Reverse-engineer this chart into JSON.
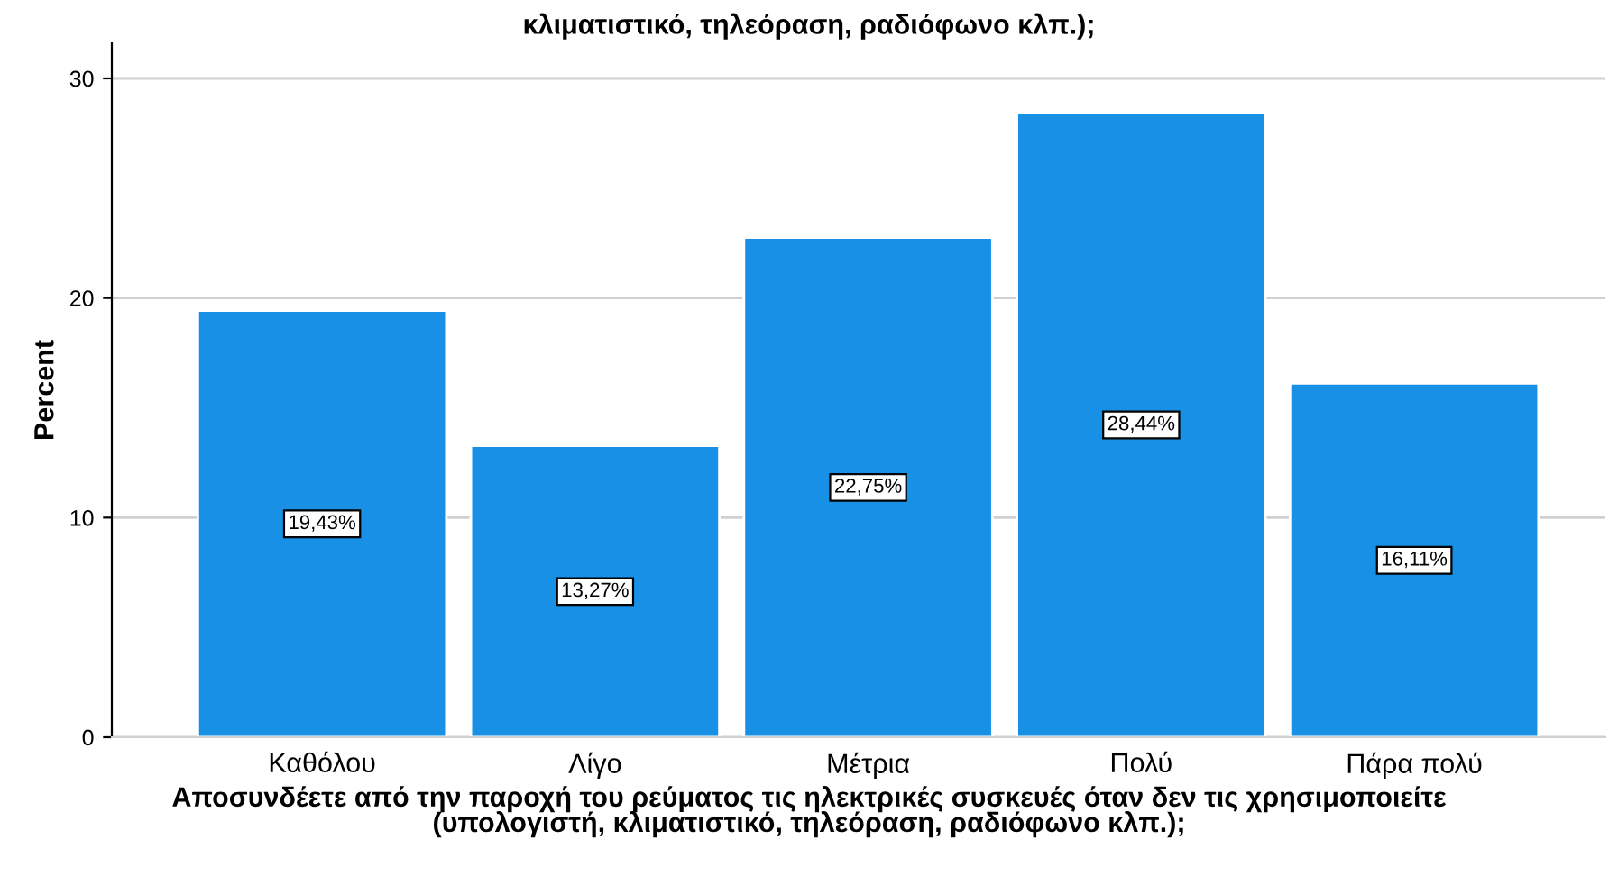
{
  "chart_data": {
    "type": "bar",
    "title": "κλιματιστικό, τηλεόραση, ραδιόφωνο κλπ.);",
    "xlabel": "Αποσυνδέετε από την παροχή του ρεύματος τις ηλεκτρικές συσκευές όταν δεν τις χρησιμοποιείτε\n(υπολογιστή, κλιματιστικό, τηλεόραση, ραδιόφωνο κλπ.);",
    "ylabel": "Percent",
    "categories": [
      "Καθόλου",
      "Λίγο",
      "Μέτρια",
      "Πολύ",
      "Πάρα πολύ"
    ],
    "values": [
      19.43,
      13.27,
      22.75,
      28.44,
      16.11
    ],
    "value_labels": [
      "19,43%",
      "13,27%",
      "22,75%",
      "28,44%",
      "16,11%"
    ],
    "color": "#1790e6",
    "ylim": [
      0,
      31.6
    ],
    "yticks": [
      0,
      10,
      20,
      30
    ],
    "grid": "y"
  }
}
